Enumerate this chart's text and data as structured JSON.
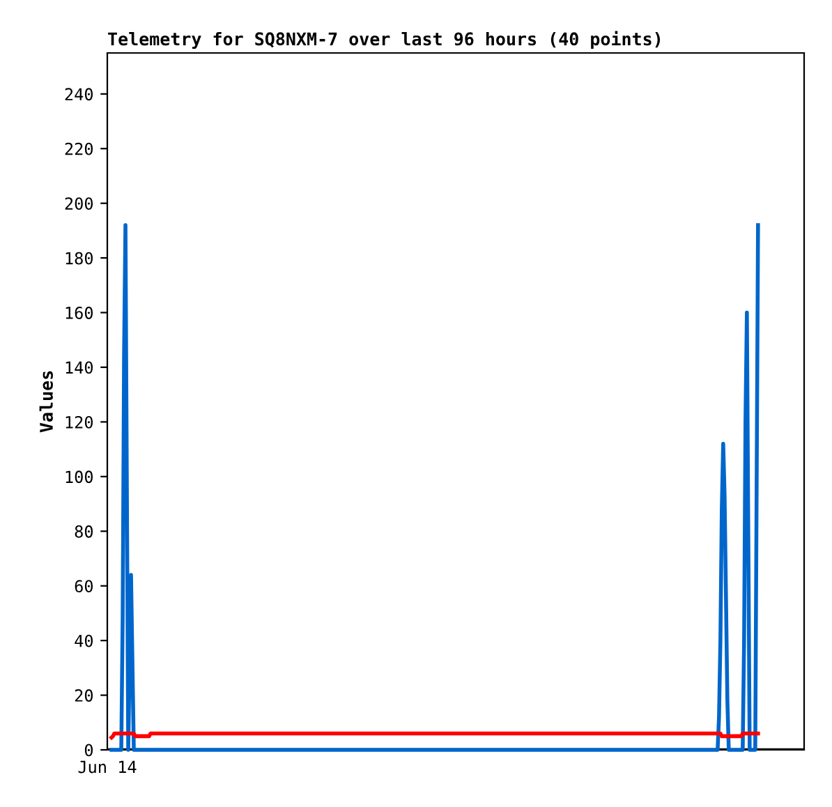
{
  "chart_data": {
    "type": "line",
    "title": "Telemetry for SQ8NXM-7 over last 96 hours (40 points)",
    "ylabel": "Values",
    "annotations": [
      "Jun 14"
    ],
    "categories": [
      null,
      null,
      null,
      null,
      null,
      null,
      null,
      null,
      null,
      null,
      null,
      null,
      null,
      null,
      null,
      null,
      null,
      null,
      null,
      null,
      null,
      null,
      null,
      null,
      null,
      null,
      null,
      null,
      null,
      null,
      null,
      null,
      null,
      null,
      null,
      null,
      null,
      null,
      null,
      null,
      null,
      null,
      null,
      null,
      null,
      null,
      null,
      null,
      null,
      null,
      null,
      null,
      null,
      null,
      null,
      null,
      null,
      null,
      null,
      null,
      null,
      null,
      null,
      null,
      null,
      null,
      null,
      null,
      null,
      null,
      null,
      null,
      null,
      null,
      null,
      null,
      null,
      null,
      null,
      null,
      null,
      null,
      null,
      null,
      null,
      null,
      null,
      null,
      null,
      null,
      null,
      null,
      null,
      null,
      null,
      null,
      null,
      null,
      null,
      null,
      null,
      null,
      null,
      null,
      null,
      null,
      null,
      null,
      null,
      null,
      null,
      null,
      null,
      null,
      null,
      null,
      null,
      null,
      null,
      null,
      null,
      null,
      null,
      null,
      null,
      null,
      null,
      null,
      null,
      null,
      null,
      null,
      null,
      null,
      null,
      null,
      null,
      null,
      null,
      null,
      null,
      null,
      null,
      null,
      null,
      null,
      null,
      null,
      null,
      null,
      null,
      null,
      null,
      null,
      null,
      null,
      null,
      null,
      null,
      null,
      null,
      null,
      null,
      null,
      null,
      null,
      null,
      null,
      null,
      null,
      null,
      null,
      null,
      null,
      null,
      null,
      null,
      null,
      null,
      null,
      null,
      null,
      null,
      null,
      null,
      null,
      null,
      null,
      null,
      null,
      null,
      null,
      null,
      null,
      null,
      null,
      null,
      null,
      null,
      null,
      null,
      null,
      null,
      null,
      null,
      null,
      null,
      null,
      null,
      null,
      null,
      null,
      null,
      null,
      null,
      null,
      null,
      null,
      null,
      null,
      null,
      null,
      null,
      null,
      null,
      null,
      null,
      null,
      null,
      null,
      null,
      null,
      null,
      null,
      null,
      null,
      null,
      null,
      null,
      null,
      null,
      null,
      null,
      null,
      null,
      null,
      null,
      null,
      null,
      null,
      null,
      null,
      null,
      null,
      null,
      null,
      null,
      null,
      null,
      null,
      null,
      null,
      null,
      null,
      null,
      null,
      null,
      null,
      null,
      null,
      null,
      null,
      null,
      null,
      null,
      null,
      null,
      null,
      null,
      null,
      null,
      null,
      null,
      null,
      null,
      null,
      null,
      null,
      null,
      null,
      null,
      null,
      null,
      null,
      null,
      null,
      null,
      null,
      null,
      null,
      null,
      null,
      null,
      null,
      null,
      null,
      null,
      null,
      null,
      null,
      null,
      null,
      null,
      null,
      null,
      null,
      null,
      null,
      null,
      null,
      null,
      null,
      null,
      null,
      null,
      null,
      null,
      null,
      null,
      null,
      null,
      null,
      null,
      null,
      null,
      null,
      null,
      null,
      null,
      null,
      null,
      null,
      null,
      null,
      null,
      null,
      null,
      null,
      null,
      null,
      null,
      null,
      null,
      null,
      null,
      null,
      null,
      null,
      null,
      null,
      null,
      null,
      null,
      null,
      null,
      null,
      null,
      null,
      null,
      null,
      null,
      null,
      null,
      null,
      null,
      null,
      null,
      null,
      null,
      null,
      null,
      null,
      null,
      null,
      null,
      null,
      null,
      null,
      null,
      null,
      null,
      null,
      null,
      null,
      null,
      null,
      null,
      null,
      null,
      null,
      null,
      null,
      null,
      null,
      null,
      null,
      null,
      null,
      null,
      null,
      null,
      null,
      null,
      null,
      null,
      null,
      null,
      null,
      null,
      null,
      null,
      null,
      null,
      null,
      null,
      null,
      null,
      null,
      null,
      null,
      null,
      null,
      null,
      null,
      null,
      null,
      null,
      null,
      null,
      null,
      null,
      null,
      null,
      null,
      null,
      null,
      null,
      null,
      null,
      null,
      null,
      null,
      null,
      null,
      null,
      null,
      null,
      null,
      null,
      null,
      null,
      null,
      null,
      null,
      null
    ],
    "ylim": [
      0,
      255
    ],
    "yticks": [
      0,
      20,
      40,
      60,
      80,
      100,
      120,
      140,
      160,
      180,
      200,
      220,
      240
    ],
    "grid": false,
    "legend": false,
    "marker": "none",
    "line_style": "solid",
    "ref_lines": [
      {
        "axis": "y",
        "value": 0,
        "color": "#000000"
      }
    ],
    "series": [
      {
        "color": "#0066cc",
        "values": [
          0,
          0,
          0,
          0,
          0,
          0,
          0,
          0,
          48,
          144,
          192,
          96,
          0,
          32,
          64,
          32,
          0,
          0,
          0,
          0,
          0,
          0,
          0,
          0,
          0,
          0,
          0,
          0,
          0,
          0,
          0,
          0,
          0,
          0,
          0,
          0,
          0,
          0,
          0,
          0,
          0,
          0,
          0,
          0,
          0,
          0,
          0,
          0,
          0,
          0,
          0,
          0,
          0,
          0,
          0,
          0,
          0,
          0,
          0,
          0,
          0,
          0,
          0,
          0,
          0,
          0,
          0,
          0,
          0,
          0,
          0,
          0,
          0,
          0,
          0,
          0,
          0,
          0,
          0,
          0,
          0,
          0,
          0,
          0,
          0,
          0,
          0,
          0,
          0,
          0,
          0,
          0,
          0,
          0,
          0,
          0,
          0,
          0,
          0,
          0,
          0,
          0,
          0,
          0,
          0,
          0,
          0,
          0,
          0,
          0,
          0,
          0,
          0,
          0,
          0,
          0,
          0,
          0,
          0,
          0,
          0,
          0,
          0,
          0,
          0,
          0,
          0,
          0,
          0,
          0,
          0,
          0,
          0,
          0,
          0,
          0,
          0,
          0,
          0,
          0,
          0,
          0,
          0,
          0,
          0,
          0,
          0,
          0,
          0,
          0,
          0,
          0,
          0,
          0,
          0,
          0,
          0,
          0,
          0,
          0,
          0,
          0,
          0,
          0,
          0,
          0,
          0,
          0,
          0,
          0,
          0,
          0,
          0,
          0,
          0,
          0,
          0,
          0,
          0,
          0,
          0,
          0,
          0,
          0,
          0,
          0,
          0,
          0,
          0,
          0,
          0,
          0,
          0,
          0,
          0,
          0,
          0,
          0,
          0,
          0,
          0,
          0,
          0,
          0,
          0,
          0,
          0,
          0,
          0,
          0,
          0,
          0,
          0,
          0,
          0,
          0,
          0,
          0,
          0,
          0,
          0,
          0,
          0,
          0,
          0,
          0,
          0,
          0,
          0,
          0,
          0,
          0,
          0,
          0,
          0,
          0,
          0,
          0,
          0,
          0,
          0,
          0,
          0,
          0,
          0,
          0,
          0,
          0,
          0,
          0,
          0,
          0,
          0,
          0,
          0,
          0,
          0,
          0,
          0,
          0,
          0,
          0,
          0,
          0,
          0,
          0,
          0,
          0,
          0,
          0,
          0,
          0,
          0,
          0,
          0,
          0,
          0,
          0,
          0,
          0,
          0,
          0,
          0,
          0,
          0,
          0,
          0,
          0,
          0,
          0,
          0,
          0,
          0,
          0,
          0,
          0,
          0,
          0,
          0,
          0,
          0,
          0,
          0,
          0,
          0,
          0,
          0,
          0,
          0,
          0,
          0,
          0,
          0,
          0,
          0,
          0,
          0,
          0,
          0,
          0,
          0,
          0,
          0,
          0,
          0,
          0,
          0,
          0,
          0,
          0,
          0,
          0,
          0,
          0,
          0,
          0,
          0,
          0,
          0,
          0,
          0,
          0,
          0,
          0,
          0,
          0,
          0,
          0,
          0,
          0,
          0,
          0,
          0,
          0,
          0,
          0,
          0,
          0,
          0,
          0,
          0,
          0,
          0,
          0,
          0,
          0,
          0,
          0,
          0,
          0,
          0,
          0,
          0,
          0,
          0,
          0,
          0,
          0,
          0,
          0,
          0,
          0,
          0,
          0,
          0,
          0,
          0,
          0,
          0,
          0,
          0,
          0,
          0,
          0,
          0,
          0,
          0,
          0,
          0,
          0,
          0,
          0,
          0,
          0,
          0,
          0,
          0,
          0,
          0,
          0,
          0,
          0,
          0,
          0,
          0,
          0,
          0,
          0,
          0,
          0,
          0,
          0,
          0,
          0,
          0,
          0,
          0,
          0,
          0,
          0,
          0,
          0,
          0,
          0,
          0,
          0,
          12,
          40,
          88,
          112,
          93,
          56,
          18,
          0,
          0,
          0,
          0,
          0,
          0,
          0,
          0,
          0,
          0,
          0,
          40,
          120,
          160,
          80,
          0,
          0,
          0,
          0,
          0,
          96,
          192
        ]
      },
      {
        "color": "#ff0000",
        "values": [
          4.5,
          5,
          6,
          6,
          6,
          6,
          6,
          6,
          6,
          6,
          6,
          6,
          6,
          6,
          6,
          6,
          6,
          5,
          5,
          5,
          5,
          5,
          5,
          5,
          5,
          5,
          5,
          5,
          6,
          6,
          6,
          6,
          6,
          6,
          6,
          6,
          6,
          6,
          6,
          6,
          6,
          6,
          6,
          6,
          6,
          6,
          6,
          6,
          6,
          6,
          6,
          6,
          6,
          6,
          6,
          6,
          6,
          6,
          6,
          6,
          6,
          6,
          6,
          6,
          6,
          6,
          6,
          6,
          6,
          6,
          6,
          6,
          6,
          6,
          6,
          6,
          6,
          6,
          6,
          6,
          6,
          6,
          6,
          6,
          6,
          6,
          6,
          6,
          6,
          6,
          6,
          6,
          6,
          6,
          6,
          6,
          6,
          6,
          6,
          6,
          6,
          6,
          6,
          6,
          6,
          6,
          6,
          6,
          6,
          6,
          6,
          6,
          6,
          6,
          6,
          6,
          6,
          6,
          6,
          6,
          6,
          6,
          6,
          6,
          6,
          6,
          6,
          6,
          6,
          6,
          6,
          6,
          6,
          6,
          6,
          6,
          6,
          6,
          6,
          6,
          6,
          6,
          6,
          6,
          6,
          6,
          6,
          6,
          6,
          6,
          6,
          6,
          6,
          6,
          6,
          6,
          6,
          6,
          6,
          6,
          6,
          6,
          6,
          6,
          6,
          6,
          6,
          6,
          6,
          6,
          6,
          6,
          6,
          6,
          6,
          6,
          6,
          6,
          6,
          6,
          6,
          6,
          6,
          6,
          6,
          6,
          6,
          6,
          6,
          6,
          6,
          6,
          6,
          6,
          6,
          6,
          6,
          6,
          6,
          6,
          6,
          6,
          6,
          6,
          6,
          6,
          6,
          6,
          6,
          6,
          6,
          6,
          6,
          6,
          6,
          6,
          6,
          6,
          6,
          6,
          6,
          6,
          6,
          6,
          6,
          6,
          6,
          6,
          6,
          6,
          6,
          6,
          6,
          6,
          6,
          6,
          6,
          6,
          6,
          6,
          6,
          6,
          6,
          6,
          6,
          6,
          6,
          6,
          6,
          6,
          6,
          6,
          6,
          6,
          6,
          6,
          6,
          6,
          6,
          6,
          6,
          6,
          6,
          6,
          6,
          6,
          6,
          6,
          6,
          6,
          6,
          6,
          6,
          6,
          6,
          6,
          6,
          6,
          6,
          6,
          6,
          6,
          6,
          6,
          6,
          6,
          6,
          6,
          6,
          6,
          6,
          6,
          6,
          6,
          6,
          6,
          6,
          6,
          6,
          6,
          6,
          6,
          6,
          6,
          6,
          6,
          6,
          6,
          6,
          6,
          6,
          6,
          6,
          6,
          6,
          6,
          6,
          6,
          6,
          6,
          6,
          6,
          6,
          6,
          6,
          6,
          6,
          6,
          6,
          6,
          6,
          6,
          6,
          6,
          6,
          6,
          6,
          6,
          6,
          6,
          6,
          6,
          6,
          6,
          6,
          6,
          6,
          6,
          6,
          6,
          6,
          6,
          6,
          6,
          6,
          6,
          6,
          6,
          6,
          6,
          6,
          6,
          6,
          6,
          6,
          6,
          6,
          6,
          6,
          6,
          6,
          6,
          6,
          6,
          6,
          6,
          6,
          6,
          6,
          6,
          6,
          6,
          6,
          6,
          6,
          6,
          6,
          6,
          6,
          6,
          6,
          6,
          6,
          6,
          6,
          6,
          6,
          6,
          6,
          6,
          6,
          6,
          6,
          6,
          6,
          6,
          6,
          6,
          6,
          6,
          6,
          6,
          6,
          6,
          6,
          6,
          6,
          6,
          6,
          6,
          6,
          6,
          6,
          6,
          6,
          6,
          6,
          6,
          6,
          6,
          6,
          6,
          6,
          6,
          6,
          6,
          6,
          6,
          5,
          5,
          5,
          5,
          5,
          5,
          5,
          5,
          5,
          5,
          5,
          5,
          5,
          5,
          5,
          6,
          6,
          6,
          6,
          6,
          6,
          6,
          6,
          6,
          6,
          6,
          6
        ]
      }
    ]
  }
}
